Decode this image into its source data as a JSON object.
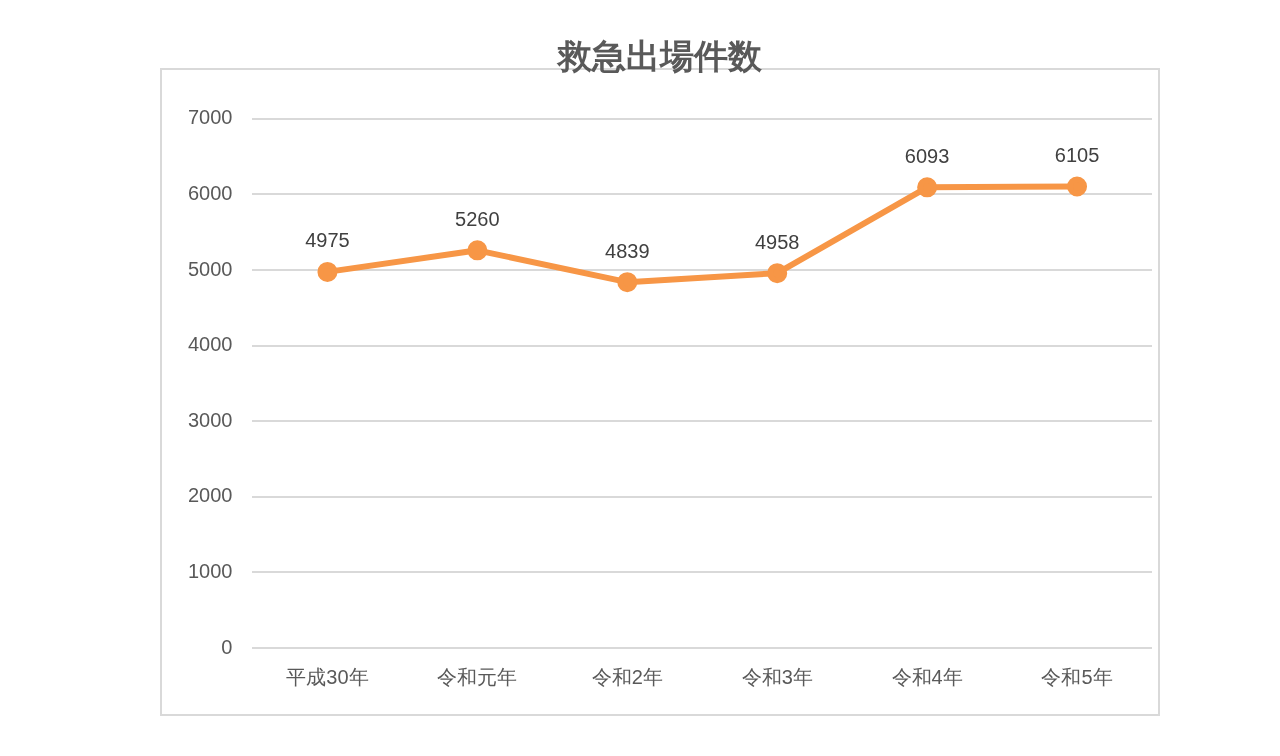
{
  "chart_data": {
    "type": "line",
    "title": "救急出場件数",
    "categories": [
      "平成30年",
      "令和元年",
      "令和2年",
      "令和3年",
      "令和4年",
      "令和5年"
    ],
    "series": [
      {
        "color": "#f79646",
        "values": [
          4975,
          5260,
          4839,
          4958,
          6093,
          6105
        ]
      }
    ],
    "ylim": [
      0,
      7000
    ],
    "yticks": [
      0,
      1000,
      2000,
      3000,
      4000,
      5000,
      6000,
      7000
    ],
    "grid": "y",
    "legend": false,
    "marker": "circle",
    "line_style": "solid",
    "data_labels": true
  }
}
